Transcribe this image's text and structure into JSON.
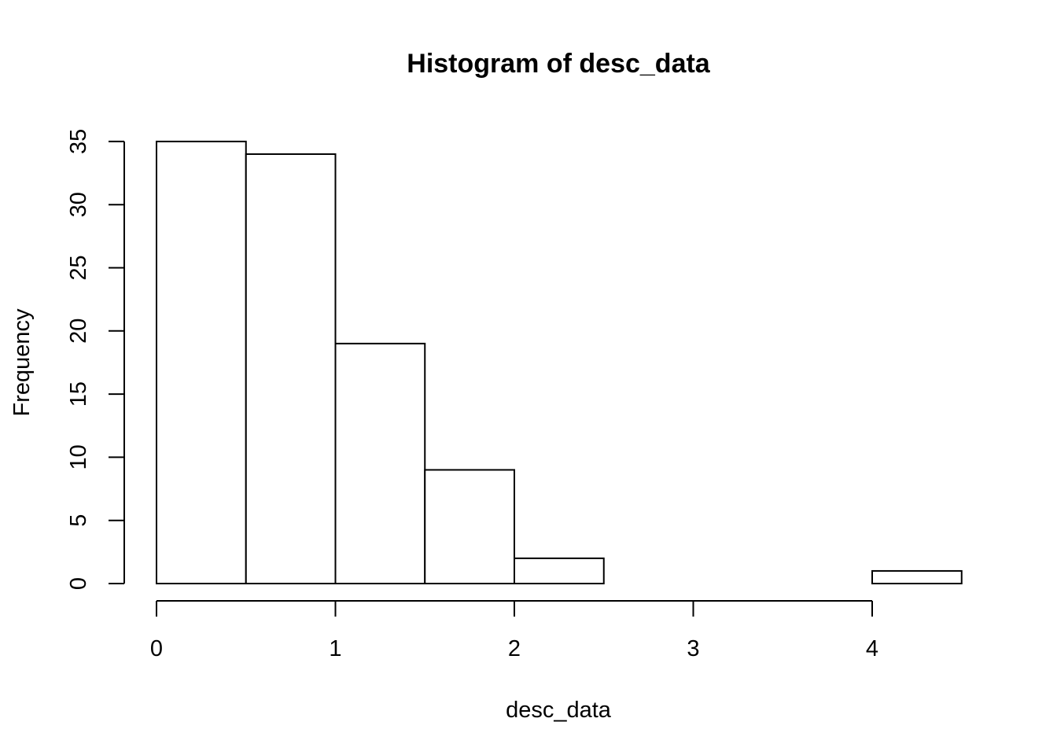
{
  "chart_data": {
    "type": "bar",
    "title": "Histogram of desc_data",
    "xlabel": "desc_data",
    "ylabel": "Frequency",
    "bins": [
      {
        "start": 0.0,
        "end": 0.5,
        "count": 35
      },
      {
        "start": 0.5,
        "end": 1.0,
        "count": 34
      },
      {
        "start": 1.0,
        "end": 1.5,
        "count": 19
      },
      {
        "start": 1.5,
        "end": 2.0,
        "count": 9
      },
      {
        "start": 2.0,
        "end": 2.5,
        "count": 2
      },
      {
        "start": 2.5,
        "end": 3.0,
        "count": 0
      },
      {
        "start": 3.0,
        "end": 3.5,
        "count": 0
      },
      {
        "start": 3.5,
        "end": 4.0,
        "count": 0
      },
      {
        "start": 4.0,
        "end": 4.5,
        "count": 1
      }
    ],
    "xticks": [
      0,
      1,
      2,
      3,
      4
    ],
    "yticks": [
      0,
      5,
      10,
      15,
      20,
      25,
      30,
      35
    ],
    "xlim": [
      0,
      4.5
    ],
    "ylim": [
      0,
      35
    ],
    "grid": false,
    "bar_fill": "#ffffff",
    "bar_stroke": "#000000"
  }
}
